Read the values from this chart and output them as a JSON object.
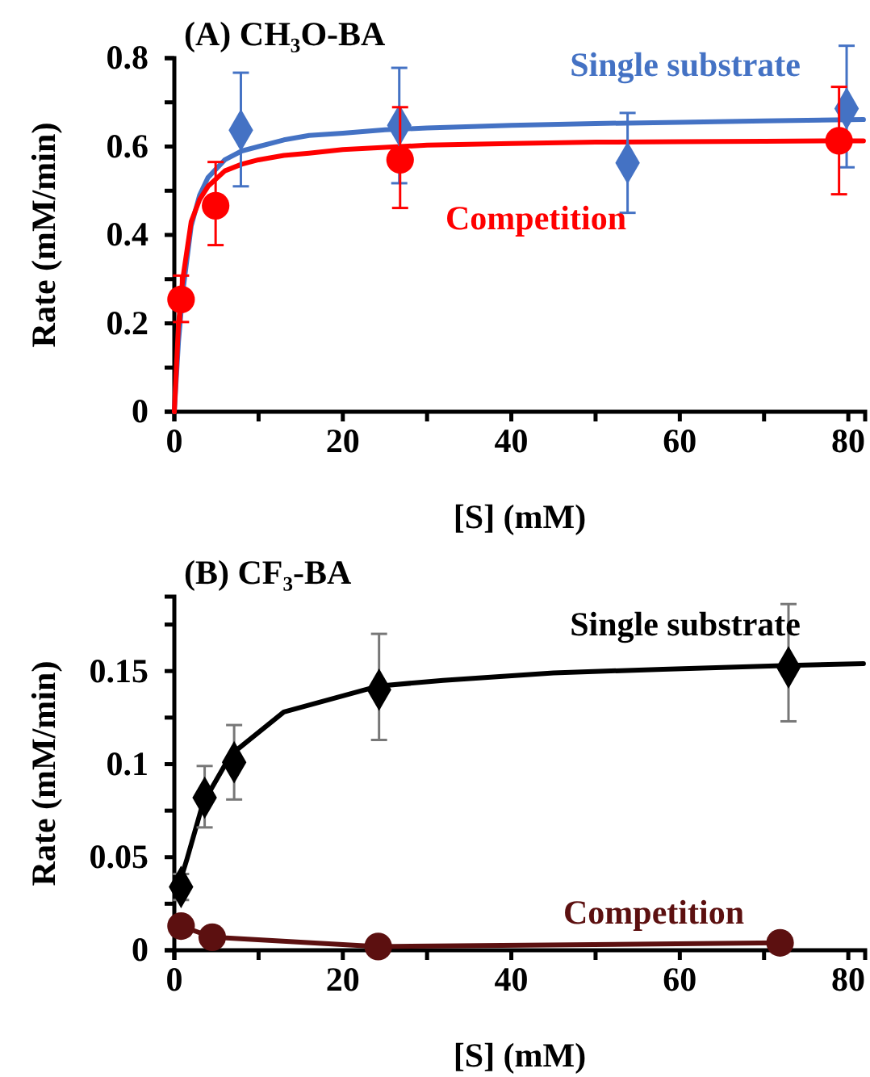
{
  "chart_data": [
    {
      "type": "scatter",
      "title": "(A) CH₃O-BA",
      "xlabel": "[S] (mM)",
      "ylabel": "Rate (mM/min)",
      "xlim": [
        0,
        82
      ],
      "xticks": [
        0,
        {
          "value": 10,
          "label": null
        },
        20,
        {
          "value": 30,
          "label": null
        },
        40,
        {
          "value": 50,
          "label": null
        },
        60,
        {
          "value": 70,
          "label": null
        },
        80
      ],
      "ylim": [
        0,
        0.8
      ],
      "yticks": [
        0,
        {
          "value": 0.1,
          "label": null
        },
        {
          "value": 0.2,
          "label": "0.2"
        },
        {
          "value": 0.3,
          "label": null
        },
        {
          "value": 0.4,
          "label": "0.4"
        },
        {
          "value": 0.5,
          "label": null
        },
        {
          "value": 0.6,
          "label": "0.6"
        },
        {
          "value": 0.7,
          "label": null
        },
        {
          "value": 0.8,
          "label": "0.8"
        }
      ],
      "series": [
        {
          "type": "line",
          "color": "#4472c4",
          "marker": "none",
          "x": [
            0,
            0.5,
            1,
            2,
            3,
            4,
            6,
            8,
            10,
            13,
            16,
            20,
            25,
            30,
            40,
            50,
            60,
            70,
            81.8
          ],
          "values": [
            0,
            0.16,
            0.27,
            0.42,
            0.49,
            0.53,
            0.57,
            0.59,
            0.6,
            0.615,
            0.625,
            0.63,
            0.638,
            0.642,
            0.648,
            0.652,
            0.655,
            0.658,
            0.661
          ]
        },
        {
          "type": "line",
          "color": "#ff0000",
          "marker": "none",
          "x": [
            0,
            0.5,
            1,
            2,
            3,
            4,
            6,
            8,
            10,
            13,
            16,
            20,
            25,
            30,
            40,
            50,
            60,
            70,
            81.8
          ],
          "values": [
            0,
            0.2,
            0.3,
            0.43,
            0.48,
            0.51,
            0.545,
            0.56,
            0.57,
            0.58,
            0.585,
            0.593,
            0.598,
            0.603,
            0.607,
            0.61,
            0.611,
            0.612,
            0.613
          ]
        },
        {
          "type": "scatter",
          "name": "Single substrate",
          "color": "#4472c4",
          "marker": "diamond",
          "x": [
            7.9,
            26.7,
            53.8,
            79.8
          ],
          "values": [
            0.637,
            0.648,
            0.563,
            0.686
          ],
          "errors": [
            [
              0.51,
              0.767
            ],
            [
              0.517,
              0.778
            ],
            [
              0.45,
              0.676
            ],
            [
              0.553,
              0.828
            ]
          ]
        },
        {
          "type": "scatter",
          "name": "Competition",
          "color": "#ff0000",
          "marker": "circle",
          "x": [
            0.8,
            4.9,
            26.8,
            78.9
          ],
          "values": [
            0.254,
            0.466,
            0.57,
            0.613
          ],
          "errors": [
            [
              0.203,
              0.308
            ],
            [
              0.377,
              0.565
            ],
            [
              0.461,
              0.689
            ],
            [
              0.492,
              0.735
            ]
          ]
        }
      ]
    },
    {
      "type": "scatter",
      "title": "(B) CF₃-BA",
      "xlabel": "[S] (mM)",
      "ylabel": "Rate (mM/min)",
      "xlim": [
        0,
        82
      ],
      "xticks": [
        0,
        {
          "value": 10,
          "label": null
        },
        20,
        {
          "value": 30,
          "label": null
        },
        40,
        {
          "value": 50,
          "label": null
        },
        60,
        {
          "value": 70,
          "label": null
        },
        80
      ],
      "ylim": [
        0,
        0.19
      ],
      "yticks": [
        0,
        {
          "value": 0.025,
          "label": null
        },
        0.05,
        {
          "value": 0.075,
          "label": null
        },
        0.1,
        {
          "value": 0.125,
          "label": null
        },
        0.15,
        {
          "value": 0.175,
          "label": null
        }
      ],
      "series": [
        {
          "type": "line",
          "color": "#000000",
          "marker": "none",
          "x": [
            0.2,
            1.5,
            3.4,
            6.7,
            13,
            24.3,
            31.9,
            45,
            58,
            72.9,
            81.8
          ],
          "values": [
            0.03,
            0.049,
            0.079,
            0.105,
            0.128,
            0.142,
            0.145,
            0.149,
            0.151,
            0.153,
            0.154
          ]
        },
        {
          "type": "scatter",
          "name": "Single substrate",
          "color": "#000000",
          "marker": "diamond",
          "x": [
            0.8,
            3.6,
            7.1,
            24.3,
            72.9
          ],
          "values": [
            0.034,
            0.082,
            0.101,
            0.14,
            0.152
          ],
          "errors": [
            [
              0.027,
              0.041
            ],
            [
              0.066,
              0.099
            ],
            [
              0.081,
              0.121
            ],
            [
              0.113,
              0.17
            ],
            [
              0.123,
              0.186
            ]
          ]
        },
        {
          "type": "line",
          "name": "Competition",
          "color": "#5c1010",
          "marker": "circle",
          "x": [
            0.8,
            4.5,
            24.2,
            71.9
          ],
          "values": [
            0.013,
            0.007,
            0.002,
            0.004
          ]
        }
      ]
    }
  ]
}
